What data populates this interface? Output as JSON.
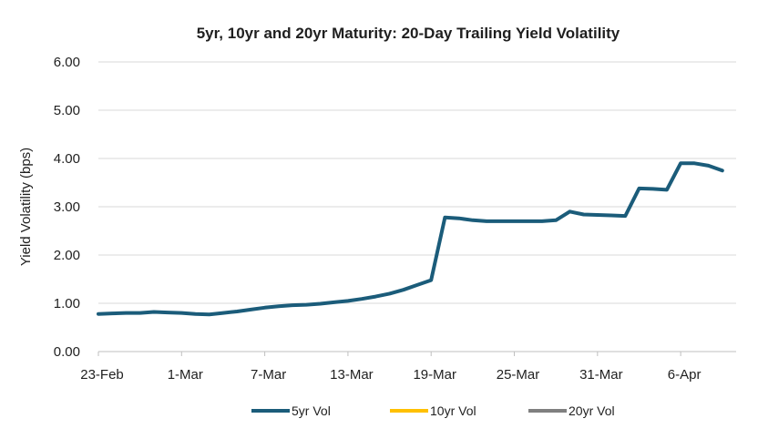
{
  "chart_data": {
    "type": "line",
    "title": "5yr, 10yr and 20yr Maturity: 20-Day Trailing Yield Volatility",
    "xlabel": "",
    "ylabel": "Yield Volatility (bps)",
    "ylim": [
      0,
      6
    ],
    "y_ticks": [
      "0.00",
      "1.00",
      "2.00",
      "3.00",
      "4.00",
      "5.00",
      "6.00"
    ],
    "x_tick_labels": [
      "23-Feb",
      "1-Mar",
      "7-Mar",
      "13-Mar",
      "19-Mar",
      "25-Mar",
      "31-Mar",
      "6-Apr"
    ],
    "x_start_label": "23-Feb",
    "x_days_span": 46,
    "grid": "horizontal",
    "legend_position": "bottom",
    "series": [
      {
        "name": "5yr Vol",
        "color": "#1b5c7a",
        "x": [
          0,
          1,
          2,
          3,
          4,
          5,
          6,
          7,
          8,
          9,
          10,
          11,
          12,
          13,
          14,
          15,
          16,
          17,
          18,
          19,
          20,
          21,
          22,
          23,
          24,
          25,
          26,
          27,
          28,
          29,
          30,
          31,
          32,
          33,
          34,
          35,
          36,
          37,
          38,
          39,
          40,
          41,
          42,
          43,
          44,
          45
        ],
        "values": [
          0.78,
          0.79,
          0.8,
          0.8,
          0.82,
          0.81,
          0.8,
          0.78,
          0.77,
          0.8,
          0.83,
          0.87,
          0.91,
          0.94,
          0.96,
          0.97,
          0.99,
          1.02,
          1.05,
          1.09,
          1.14,
          1.2,
          1.28,
          1.38,
          1.48,
          2.78,
          2.76,
          2.72,
          2.7,
          2.7,
          2.7,
          2.7,
          2.7,
          2.72,
          2.9,
          2.84,
          2.83,
          2.82,
          2.81,
          3.38,
          3.37,
          3.35,
          3.9,
          3.9,
          3.85,
          3.75
        ]
      }
    ]
  },
  "legend": {
    "items": [
      "5yr Vol",
      "10yr Vol",
      "20yr Vol"
    ]
  }
}
